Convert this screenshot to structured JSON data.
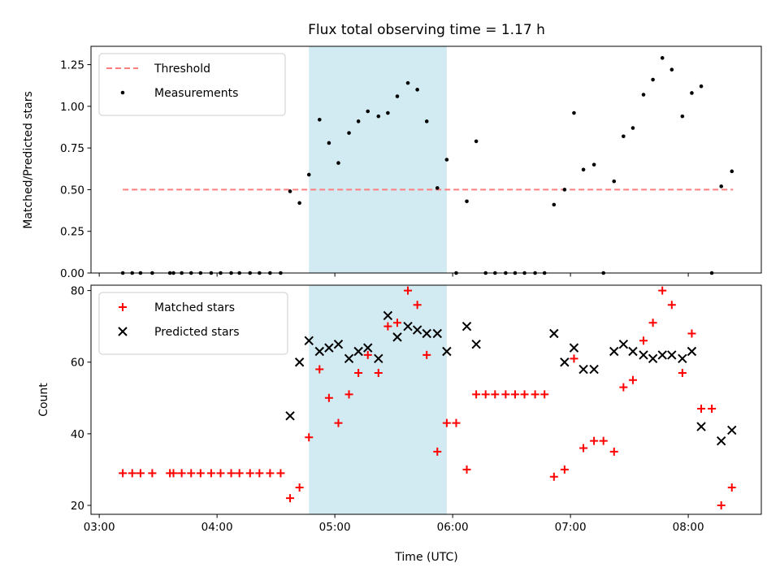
{
  "chart_data": {
    "title": "Flux total observing time = 1.17 h",
    "x_axis": {
      "label": "Time (UTC)",
      "ticks": [
        "03:00",
        "04:00",
        "05:00",
        "06:00",
        "07:00",
        "08:00"
      ],
      "tick_hours": [
        3,
        4,
        5,
        6,
        7,
        8
      ],
      "range_hours": [
        2.93,
        8.62
      ]
    },
    "shaded_interval_hours": [
      4.78,
      5.95
    ],
    "shade_color": "#add8e6",
    "panels": [
      {
        "type": "scatter",
        "ylabel": "Matched/Predicted stars",
        "ylim": [
          0,
          1.36
        ],
        "yticks": [
          "0.00",
          "0.25",
          "0.50",
          "0.75",
          "1.00",
          "1.25"
        ],
        "ytick_values": [
          0,
          0.25,
          0.5,
          0.75,
          1.0,
          1.25
        ],
        "legend_position": "upper-left",
        "threshold": {
          "name": "Threshold",
          "value": 0.5,
          "x_range_hours": [
            3.2,
            8.38
          ],
          "color": "#ff7f7f",
          "style": "dashed"
        },
        "series": [
          {
            "name": "Measurements",
            "marker": "dot",
            "color": "#000000",
            "x": [
              3.2,
              3.28,
              3.35,
              3.45,
              3.6,
              3.63,
              3.7,
              3.78,
              3.86,
              3.95,
              4.03,
              4.12,
              4.19,
              4.28,
              4.36,
              4.45,
              4.54,
              4.62,
              4.7,
              4.78,
              4.87,
              4.95,
              5.03,
              5.12,
              5.2,
              5.28,
              5.37,
              5.45,
              5.53,
              5.62,
              5.7,
              5.78,
              5.87,
              5.95,
              6.03,
              6.12,
              6.2,
              6.28,
              6.36,
              6.45,
              6.53,
              6.61,
              6.7,
              6.78,
              6.86,
              6.95,
              7.03,
              7.11,
              7.2,
              7.28,
              7.37,
              7.45,
              7.53,
              7.62,
              7.7,
              7.78,
              7.86,
              7.95,
              8.03,
              8.11,
              8.2,
              8.28,
              8.37
            ],
            "y": [
              0,
              0,
              0,
              0,
              0,
              0,
              0,
              0,
              0,
              0,
              0,
              0,
              0,
              0,
              0,
              0,
              0,
              0.49,
              0.42,
              0.59,
              0.92,
              0.78,
              0.66,
              0.84,
              0.91,
              0.97,
              0.94,
              0.96,
              1.06,
              1.14,
              1.1,
              0.91,
              0.51,
              0.68,
              0,
              0.43,
              0.79,
              0,
              0,
              0,
              0,
              0,
              0,
              0,
              0.41,
              0.5,
              0.96,
              0.62,
              0.65,
              0,
              0.55,
              0.82,
              0.87,
              1.07,
              1.16,
              1.29,
              1.22,
              0.94,
              1.08,
              1.12,
              0,
              0.52,
              0.61
            ]
          }
        ]
      },
      {
        "type": "scatter",
        "ylabel": "Count",
        "ylim": [
          17.5,
          81.5
        ],
        "yticks": [
          "20",
          "40",
          "60",
          "80"
        ],
        "ytick_values": [
          20,
          40,
          60,
          80
        ],
        "legend_position": "upper-left",
        "series": [
          {
            "name": "Matched stars",
            "marker": "plus",
            "color": "#ff0000",
            "x": [
              3.2,
              3.28,
              3.35,
              3.45,
              3.6,
              3.63,
              3.7,
              3.78,
              3.86,
              3.95,
              4.03,
              4.12,
              4.19,
              4.28,
              4.36,
              4.45,
              4.54,
              4.62,
              4.7,
              4.78,
              4.87,
              4.95,
              5.03,
              5.12,
              5.2,
              5.28,
              5.37,
              5.45,
              5.53,
              5.62,
              5.7,
              5.78,
              5.87,
              5.95,
              6.03,
              6.12,
              6.2,
              6.28,
              6.36,
              6.45,
              6.53,
              6.61,
              6.7,
              6.78,
              6.86,
              6.95,
              7.03,
              7.11,
              7.2,
              7.28,
              7.37,
              7.45,
              7.53,
              7.62,
              7.7,
              7.78,
              7.86,
              7.95,
              8.03,
              8.11,
              8.2,
              8.28,
              8.37
            ],
            "y": [
              29,
              29,
              29,
              29,
              29,
              29,
              29,
              29,
              29,
              29,
              29,
              29,
              29,
              29,
              29,
              29,
              29,
              22,
              25,
              39,
              58,
              50,
              43,
              51,
              57,
              62,
              57,
              70,
              71,
              80,
              76,
              62,
              35,
              43,
              43,
              30,
              51,
              51,
              51,
              51,
              51,
              51,
              51,
              51,
              28,
              30,
              61,
              36,
              38,
              38,
              35,
              53,
              55,
              66,
              71,
              80,
              76,
              57,
              68,
              47,
              47,
              20,
              25
            ]
          },
          {
            "name": "Predicted stars",
            "marker": "x",
            "color": "#000000",
            "x": [
              4.62,
              4.7,
              4.78,
              4.87,
              4.95,
              5.03,
              5.12,
              5.2,
              5.28,
              5.37,
              5.45,
              5.53,
              5.62,
              5.7,
              5.78,
              5.87,
              5.95,
              6.12,
              6.2,
              6.86,
              6.95,
              7.03,
              7.11,
              7.2,
              7.37,
              7.45,
              7.53,
              7.62,
              7.7,
              7.78,
              7.86,
              7.95,
              8.03,
              8.11,
              8.28,
              8.37
            ],
            "y": [
              45,
              60,
              66,
              63,
              64,
              65,
              61,
              63,
              64,
              61,
              73,
              67,
              70,
              69,
              68,
              68,
              63,
              70,
              65,
              68,
              60,
              64,
              58,
              58,
              63,
              65,
              63,
              62,
              61,
              62,
              62,
              61,
              63,
              42,
              38,
              41
            ]
          }
        ]
      }
    ]
  }
}
